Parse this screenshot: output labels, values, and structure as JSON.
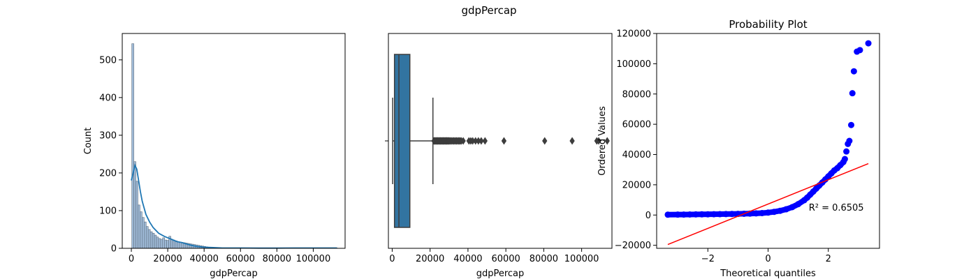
{
  "suptitle": "gdpPercap",
  "chart_data": [
    {
      "type": "bar",
      "subtype": "histogram-with-kde",
      "title": "",
      "xlabel": "gdpPercap",
      "ylabel": "Count",
      "xlim": [
        -5000,
        117500
      ],
      "ylim": [
        0,
        570
      ],
      "xticks": [
        0,
        20000,
        40000,
        60000,
        80000,
        100000
      ],
      "yticks": [
        0,
        100,
        200,
        300,
        400,
        500
      ],
      "bin_width": 1130,
      "bin_start": 241,
      "values": [
        543,
        230,
        178,
        115,
        97,
        82,
        70,
        58,
        50,
        44,
        40,
        35,
        30,
        26,
        24,
        28,
        22,
        21,
        32,
        24,
        22,
        20,
        18,
        17,
        16,
        15,
        14,
        13,
        12,
        11,
        10,
        9,
        8,
        7,
        6,
        5,
        4,
        3,
        3,
        2,
        2,
        2,
        1,
        1,
        1,
        1,
        1,
        1,
        1,
        1,
        1,
        1,
        1,
        1,
        0,
        0,
        0,
        0,
        0,
        0,
        0,
        0,
        0,
        0,
        0,
        0,
        0,
        0,
        0,
        0,
        0,
        0,
        0,
        0,
        1,
        0,
        0,
        0,
        0,
        0,
        0,
        0,
        0,
        0,
        0,
        0,
        0,
        0,
        0,
        0,
        0,
        0,
        0,
        0,
        1,
        1,
        1,
        1,
        0,
        1
      ],
      "kde": {
        "x": [
          0,
          1000,
          2000,
          3000,
          4000,
          5000,
          6000,
          8000,
          10000,
          12000,
          15000,
          18000,
          20000,
          22000,
          25000,
          28000,
          30000,
          33000,
          36000,
          40000,
          45000,
          50000,
          60000,
          70000,
          80000,
          90000,
          100000,
          110000,
          113000
        ],
        "y": [
          180,
          200,
          220,
          210,
          180,
          150,
          125,
          90,
          70,
          55,
          40,
          32,
          28,
          24,
          18,
          15,
          12,
          8,
          5,
          3,
          2,
          1,
          1,
          0.5,
          0.5,
          1,
          1,
          1,
          1
        ]
      },
      "colors": {
        "bar": "#8eaed0",
        "bar_edge": "#5f6f7f",
        "kde": "#1f77b4"
      }
    },
    {
      "type": "box",
      "title": "",
      "xlabel": "gdpPercap",
      "ylabel": "",
      "xlim": [
        -2000,
        116000
      ],
      "xticks": [
        0,
        20000,
        40000,
        60000,
        80000,
        100000
      ],
      "box": {
        "whisker_low": 241,
        "q1": 1202,
        "median": 3532,
        "q3": 9325,
        "whisker_high": 21500
      },
      "outliers": [
        22000,
        22300,
        22600,
        22900,
        23200,
        23500,
        23800,
        24100,
        24400,
        24700,
        25000,
        25300,
        25600,
        25900,
        26200,
        26500,
        26800,
        27100,
        27400,
        27700,
        28000,
        28300,
        28600,
        28900,
        29200,
        29500,
        29800,
        30100,
        30500,
        31000,
        31500,
        32000,
        32500,
        33000,
        33500,
        34000,
        34500,
        35000,
        35500,
        36000,
        36500,
        37500,
        40500,
        41500,
        42500,
        44000,
        45500,
        47000,
        49000,
        59000,
        80500,
        95000,
        108000,
        109000,
        113500
      ],
      "colors": {
        "box": "#3274a1",
        "line": "#3d3d3d"
      }
    },
    {
      "type": "scatter",
      "title": "Probability Plot",
      "xlabel": "Theoretical quantiles",
      "ylabel": "Ordered Values",
      "xlim": [
        -3.7,
        3.7
      ],
      "ylim": [
        -22000,
        120000
      ],
      "xticks": [
        -2,
        0,
        2
      ],
      "yticks": [
        -20000,
        0,
        20000,
        40000,
        60000,
        80000,
        100000,
        120000
      ],
      "annotation": {
        "text": "R² = 0.6505",
        "x": 1.35,
        "y": 3000
      },
      "points": [
        [
          -3.33,
          241
        ],
        [
          -3.0,
          300
        ],
        [
          -2.8,
          331
        ],
        [
          -2.6,
          380
        ],
        [
          -2.4,
          420
        ],
        [
          -2.2,
          460
        ],
        [
          -2.0,
          500
        ],
        [
          -1.8,
          540
        ],
        [
          -1.6,
          580
        ],
        [
          -1.4,
          630
        ],
        [
          -1.2,
          690
        ],
        [
          -1.0,
          760
        ],
        [
          -0.8,
          850
        ],
        [
          -0.6,
          950
        ],
        [
          -0.4,
          1100
        ],
        [
          -0.2,
          1300
        ],
        [
          0.0,
          1600
        ],
        [
          0.2,
          2100
        ],
        [
          0.4,
          2800
        ],
        [
          0.6,
          3800
        ],
        [
          0.8,
          5200
        ],
        [
          1.0,
          7200
        ],
        [
          1.2,
          9800
        ],
        [
          1.3,
          11500
        ],
        [
          1.4,
          13500
        ],
        [
          1.5,
          15500
        ],
        [
          1.6,
          17500
        ],
        [
          1.7,
          19500
        ],
        [
          1.8,
          21500
        ],
        [
          1.9,
          23500
        ],
        [
          2.0,
          25500
        ],
        [
          2.1,
          27500
        ],
        [
          2.2,
          29500
        ],
        [
          2.3,
          31000
        ],
        [
          2.4,
          33000
        ],
        [
          2.5,
          35000
        ],
        [
          2.55,
          37000
        ],
        [
          2.6,
          42000
        ],
        [
          2.65,
          47000
        ],
        [
          2.7,
          49000
        ],
        [
          2.76,
          59500
        ],
        [
          2.8,
          80500
        ],
        [
          2.85,
          95000
        ],
        [
          2.95,
          108000
        ],
        [
          3.05,
          109000
        ],
        [
          3.33,
          113500
        ]
      ],
      "fit_line": {
        "x": [
          -3.33,
          3.33
        ],
        "y": [
          -19500,
          34000
        ]
      },
      "colors": {
        "points": "#0000ff",
        "line": "#ff0000"
      }
    }
  ]
}
